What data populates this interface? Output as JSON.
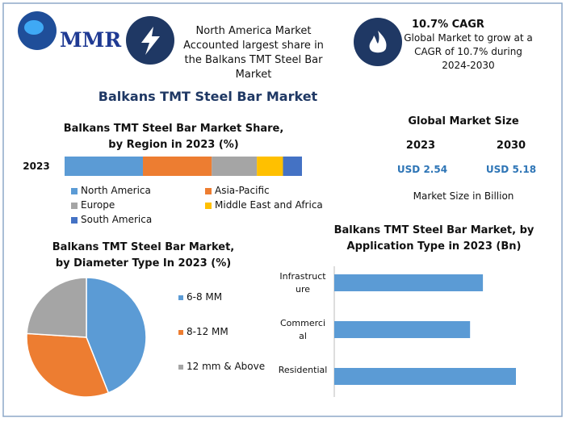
{
  "header": {
    "logo": "MMR",
    "highlight": "North America Market Accounted largest share in the Balkans TMT Steel Bar Market",
    "cagr_title": "10.7% CAGR",
    "cagr_text": "Global Market to grow at a CAGR of 10.7% during 2024-2030",
    "title": "Balkans TMT Steel Bar Market"
  },
  "market_size": {
    "title": "Global Market Size",
    "years": [
      "2023",
      "2030"
    ],
    "values": [
      "USD 2.54",
      "USD 5.18"
    ],
    "note": "Market Size in Billion"
  },
  "chart_data": [
    {
      "type": "stacked-bar",
      "title": "Balkans TMT Steel Bar Market Share, by Region in 2023 (%)",
      "categories": [
        "2023"
      ],
      "xlim": [
        0,
        100
      ],
      "series": [
        {
          "name": "North America",
          "color": "#5b9bd5",
          "values": [
            33
          ]
        },
        {
          "name": "Asia-Pacific",
          "color": "#ed7d31",
          "values": [
            29
          ]
        },
        {
          "name": "Europe",
          "color": "#a5a5a5",
          "values": [
            19
          ]
        },
        {
          "name": "Middle East and Africa",
          "color": "#ffc000",
          "values": [
            11
          ]
        },
        {
          "name": "South America",
          "color": "#4472c4",
          "values": [
            8
          ]
        }
      ]
    },
    {
      "type": "pie",
      "title": "Balkans TMT Steel Bar Market, by Diameter Type In 2023 (%)",
      "categories": [
        "6-8 MM",
        "8-12 MM",
        "12 mm & Above"
      ],
      "values": [
        44,
        32,
        24
      ],
      "colors": [
        "#5b9bd5",
        "#ed7d31",
        "#a5a5a5"
      ]
    },
    {
      "type": "hbar",
      "title": "Balkans TMT Steel Bar Market, by Application Type in 2023 (Bn)",
      "categories": [
        "Infrastructure",
        "Commercial",
        "Residential"
      ],
      "values": [
        0.81,
        0.74,
        0.99
      ],
      "color": "#5b9bd5",
      "xlim": [
        0,
        1.1
      ]
    }
  ]
}
